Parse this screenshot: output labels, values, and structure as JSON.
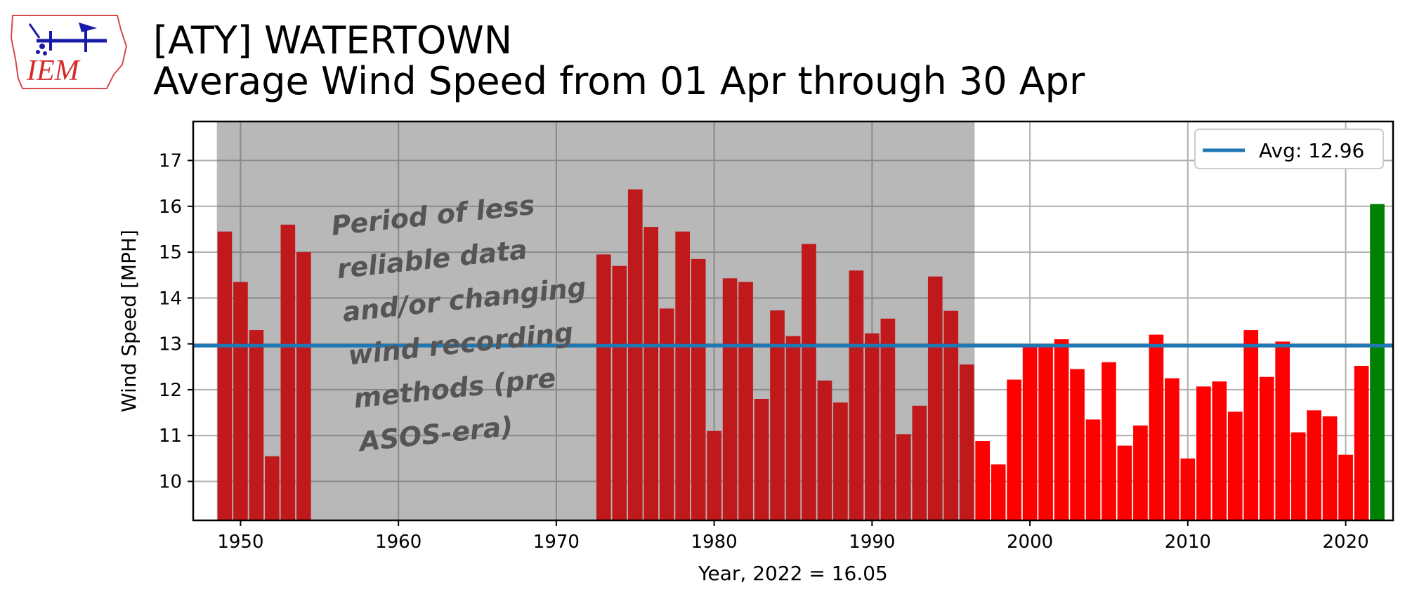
{
  "header": {
    "logo_text": "IEM",
    "title_line1": "[ATY] WATERTOWN",
    "title_line2": "Average Wind Speed from 01 Apr through 30 Apr"
  },
  "chart_data": {
    "type": "bar",
    "xlabel": "Year, 2022 = 16.05",
    "ylabel": "Wind Speed [MPH]",
    "xlim": [
      1947,
      2023
    ],
    "ylim": [
      9.15,
      17.85
    ],
    "xticks": [
      1950,
      1960,
      1970,
      1980,
      1990,
      2000,
      2010,
      2020
    ],
    "yticks": [
      10,
      11,
      12,
      13,
      14,
      15,
      16,
      17
    ],
    "grid": true,
    "shaded_period": {
      "start": 1948.5,
      "end": 1996.5,
      "label_lines": [
        "Period of less",
        "reliable data",
        "and/or changing",
        "wind recording",
        "methods (pre",
        "ASOS-era)"
      ]
    },
    "average": {
      "label": "Avg: 12.96",
      "value": 12.96,
      "color": "#1f77b4"
    },
    "legend_position": "top-right",
    "colors": {
      "pre_asos": "#c0191c",
      "asos": "#ff0000",
      "highlight": "#008000",
      "shade": "#b8b8b8"
    },
    "years": [
      1949,
      1950,
      1951,
      1952,
      1953,
      1954,
      1973,
      1974,
      1975,
      1976,
      1977,
      1978,
      1979,
      1980,
      1981,
      1982,
      1983,
      1984,
      1985,
      1986,
      1987,
      1988,
      1989,
      1990,
      1991,
      1992,
      1993,
      1994,
      1995,
      1996,
      1997,
      1998,
      1999,
      2000,
      2001,
      2002,
      2003,
      2004,
      2005,
      2006,
      2007,
      2008,
      2009,
      2010,
      2011,
      2012,
      2013,
      2014,
      2015,
      2016,
      2017,
      2018,
      2019,
      2020,
      2021,
      2022
    ],
    "values": [
      15.45,
      14.35,
      13.3,
      10.55,
      15.6,
      15.0,
      14.95,
      14.7,
      16.37,
      15.55,
      13.77,
      15.45,
      14.85,
      11.1,
      14.43,
      14.35,
      11.8,
      13.73,
      13.17,
      15.18,
      12.2,
      11.72,
      14.6,
      13.23,
      13.55,
      11.03,
      11.65,
      14.47,
      13.72,
      12.55,
      10.88,
      10.37,
      12.22,
      12.97,
      12.97,
      13.1,
      12.45,
      11.35,
      12.6,
      10.78,
      11.22,
      13.2,
      12.25,
      10.5,
      12.07,
      12.18,
      11.52,
      13.3,
      12.28,
      13.05,
      11.07,
      11.55,
      11.42,
      10.58,
      12.52,
      16.05
    ],
    "highlight_year": 2022
  }
}
